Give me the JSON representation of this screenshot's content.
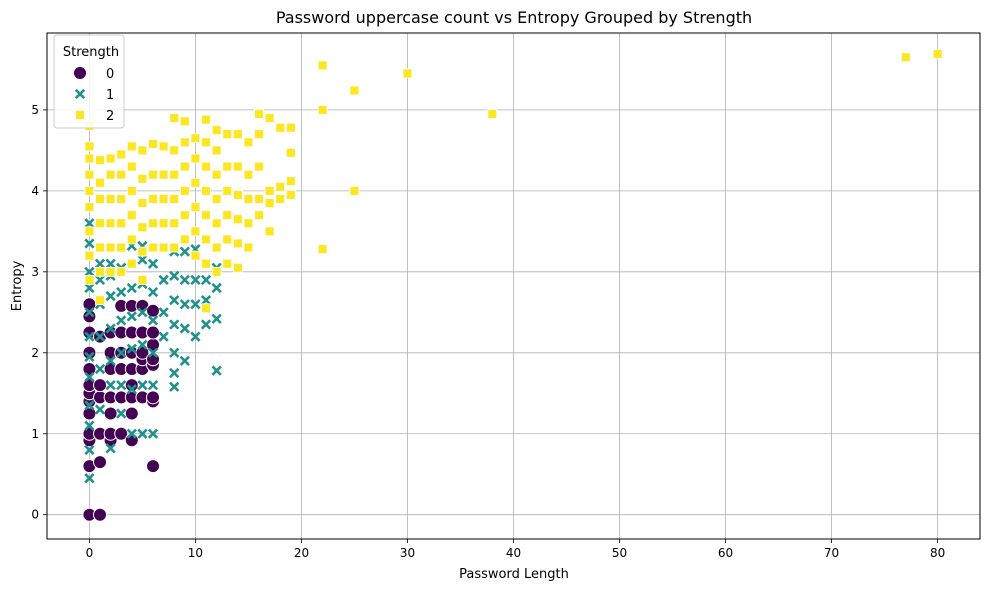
{
  "chart_data": {
    "type": "scatter",
    "title": "Password uppercase count vs Entropy Grouped by Strength",
    "xlabel": "Password Length",
    "ylabel": "Entropy",
    "xlim": [
      -4,
      84
    ],
    "ylim": [
      -0.3,
      5.95
    ],
    "xticks": [
      0,
      10,
      20,
      30,
      40,
      50,
      60,
      70,
      80
    ],
    "yticks": [
      0,
      1,
      2,
      3,
      4,
      5
    ],
    "grid": true,
    "legend": {
      "title": "Strength",
      "placement": "upper-left"
    },
    "series": [
      {
        "name": "0",
        "color": "#440154",
        "marker": "circle",
        "points": [
          [
            0,
            0
          ],
          [
            1,
            0
          ],
          [
            0,
            0.6
          ],
          [
            1,
            0.65
          ],
          [
            0,
            0.92
          ],
          [
            0,
            1.0
          ],
          [
            1,
            1.0
          ],
          [
            0,
            1.25
          ],
          [
            0,
            1.4
          ],
          [
            0,
            1.5
          ],
          [
            1,
            1.45
          ],
          [
            0,
            1.6
          ],
          [
            1,
            1.6
          ],
          [
            0,
            1.8
          ],
          [
            0,
            2.0
          ],
          [
            0,
            2.25
          ],
          [
            0,
            2.45
          ],
          [
            0,
            2.6
          ],
          [
            1,
            2.2
          ],
          [
            2,
            0.92
          ],
          [
            2,
            1.0
          ],
          [
            2,
            1.25
          ],
          [
            2,
            1.45
          ],
          [
            2,
            1.8
          ],
          [
            2,
            2.0
          ],
          [
            2,
            2.25
          ],
          [
            3,
            1.0
          ],
          [
            3,
            1.45
          ],
          [
            3,
            1.8
          ],
          [
            3,
            2.0
          ],
          [
            3,
            2.25
          ],
          [
            3,
            2.58
          ],
          [
            4,
            0.92
          ],
          [
            4,
            1.25
          ],
          [
            4,
            1.45
          ],
          [
            4,
            1.6
          ],
          [
            4,
            1.8
          ],
          [
            4,
            2.0
          ],
          [
            4,
            2.25
          ],
          [
            4,
            2.58
          ],
          [
            5,
            1.45
          ],
          [
            5,
            1.8
          ],
          [
            5,
            1.92
          ],
          [
            5,
            2.0
          ],
          [
            5,
            2.25
          ],
          [
            5,
            2.58
          ],
          [
            6,
            0.6
          ],
          [
            6,
            1.4
          ],
          [
            6,
            1.45
          ],
          [
            6,
            1.85
          ],
          [
            6,
            1.92
          ],
          [
            6,
            2.1
          ],
          [
            6,
            2.25
          ],
          [
            6,
            2.52
          ]
        ]
      },
      {
        "name": "1",
        "color": "#21918c",
        "marker": "x",
        "points": [
          [
            0,
            0.45
          ],
          [
            0,
            0.8
          ],
          [
            0,
            1.1
          ],
          [
            0,
            1.35
          ],
          [
            0,
            1.7
          ],
          [
            0,
            1.95
          ],
          [
            0,
            2.2
          ],
          [
            0,
            2.5
          ],
          [
            0,
            2.8
          ],
          [
            0,
            3.0
          ],
          [
            0,
            3.2
          ],
          [
            0,
            3.35
          ],
          [
            0,
            3.6
          ],
          [
            1,
            1.3
          ],
          [
            1,
            1.8
          ],
          [
            1,
            2.2
          ],
          [
            1,
            2.6
          ],
          [
            1,
            2.9
          ],
          [
            1,
            3.1
          ],
          [
            2,
            0.82
          ],
          [
            2,
            1.6
          ],
          [
            2,
            1.9
          ],
          [
            2,
            2.3
          ],
          [
            2,
            2.7
          ],
          [
            2,
            2.95
          ],
          [
            2,
            3.1
          ],
          [
            3,
            1.25
          ],
          [
            3,
            1.6
          ],
          [
            3,
            2.0
          ],
          [
            3,
            2.4
          ],
          [
            3,
            2.75
          ],
          [
            3,
            3.05
          ],
          [
            4,
            1.0
          ],
          [
            4,
            1.55
          ],
          [
            4,
            2.05
          ],
          [
            4,
            2.45
          ],
          [
            4,
            2.8
          ],
          [
            4,
            3.1
          ],
          [
            4,
            3.32
          ],
          [
            5,
            1.0
          ],
          [
            5,
            1.6
          ],
          [
            5,
            2.1
          ],
          [
            5,
            2.5
          ],
          [
            5,
            2.85
          ],
          [
            5,
            3.15
          ],
          [
            5,
            3.32
          ],
          [
            6,
            1.0
          ],
          [
            6,
            1.6
          ],
          [
            6,
            2.0
          ],
          [
            6,
            2.4
          ],
          [
            6,
            2.75
          ],
          [
            6,
            3.1
          ],
          [
            7,
            2.2
          ],
          [
            7,
            2.5
          ],
          [
            7,
            2.9
          ],
          [
            7,
            3.3
          ],
          [
            8,
            1.58
          ],
          [
            8,
            1.75
          ],
          [
            8,
            2.0
          ],
          [
            8,
            2.35
          ],
          [
            8,
            2.65
          ],
          [
            8,
            2.95
          ],
          [
            8,
            3.25
          ],
          [
            9,
            1.9
          ],
          [
            9,
            2.3
          ],
          [
            9,
            2.6
          ],
          [
            9,
            2.9
          ],
          [
            9,
            3.25
          ],
          [
            10,
            2.2
          ],
          [
            10,
            2.6
          ],
          [
            10,
            2.9
          ],
          [
            10,
            3.28
          ],
          [
            11,
            2.35
          ],
          [
            11,
            2.65
          ],
          [
            11,
            2.9
          ],
          [
            11,
            3.1
          ],
          [
            12,
            1.78
          ],
          [
            12,
            2.42
          ],
          [
            12,
            2.8
          ],
          [
            12,
            3.05
          ]
        ]
      },
      {
        "name": "2",
        "color": "#fde725",
        "marker": "square",
        "points": [
          [
            0,
            2.9
          ],
          [
            0,
            3.2
          ],
          [
            0,
            3.5
          ],
          [
            0,
            3.8
          ],
          [
            0,
            4.0
          ],
          [
            0,
            4.2
          ],
          [
            0,
            4.4
          ],
          [
            0,
            4.55
          ],
          [
            0,
            4.8
          ],
          [
            1,
            2.65
          ],
          [
            1,
            3.0
          ],
          [
            1,
            3.3
          ],
          [
            1,
            3.6
          ],
          [
            1,
            3.9
          ],
          [
            1,
            4.1
          ],
          [
            1,
            4.38
          ],
          [
            2,
            3.0
          ],
          [
            2,
            3.3
          ],
          [
            2,
            3.6
          ],
          [
            2,
            3.9
          ],
          [
            2,
            4.2
          ],
          [
            2,
            4.4
          ],
          [
            3,
            3.0
          ],
          [
            3,
            3.3
          ],
          [
            3,
            3.6
          ],
          [
            3,
            3.9
          ],
          [
            3,
            4.2
          ],
          [
            3,
            4.45
          ],
          [
            4,
            3.1
          ],
          [
            4,
            3.4
          ],
          [
            4,
            3.7
          ],
          [
            4,
            4.0
          ],
          [
            4,
            4.3
          ],
          [
            4,
            4.55
          ],
          [
            5,
            2.9
          ],
          [
            5,
            3.25
          ],
          [
            5,
            3.55
          ],
          [
            5,
            3.85
          ],
          [
            5,
            4.15
          ],
          [
            5,
            4.5
          ],
          [
            6,
            3.3
          ],
          [
            6,
            3.6
          ],
          [
            6,
            3.9
          ],
          [
            6,
            4.2
          ],
          [
            6,
            4.58
          ],
          [
            7,
            3.3
          ],
          [
            7,
            3.6
          ],
          [
            7,
            3.9
          ],
          [
            7,
            4.2
          ],
          [
            7,
            4.55
          ],
          [
            8,
            3.3
          ],
          [
            8,
            3.6
          ],
          [
            8,
            3.9
          ],
          [
            8,
            4.2
          ],
          [
            8,
            4.5
          ],
          [
            8,
            4.9
          ],
          [
            9,
            3.4
          ],
          [
            9,
            3.7
          ],
          [
            9,
            4.0
          ],
          [
            9,
            4.3
          ],
          [
            9,
            4.6
          ],
          [
            9,
            4.86
          ],
          [
            10,
            3.2
          ],
          [
            10,
            3.5
          ],
          [
            10,
            3.8
          ],
          [
            10,
            4.1
          ],
          [
            10,
            4.4
          ],
          [
            10,
            4.65
          ],
          [
            11,
            2.55
          ],
          [
            11,
            3.1
          ],
          [
            11,
            3.4
          ],
          [
            11,
            3.7
          ],
          [
            11,
            4.0
          ],
          [
            11,
            4.3
          ],
          [
            11,
            4.6
          ],
          [
            11,
            4.88
          ],
          [
            12,
            3.0
          ],
          [
            12,
            3.3
          ],
          [
            12,
            3.6
          ],
          [
            12,
            3.9
          ],
          [
            12,
            4.2
          ],
          [
            12,
            4.5
          ],
          [
            12,
            4.75
          ],
          [
            13,
            3.1
          ],
          [
            13,
            3.4
          ],
          [
            13,
            3.7
          ],
          [
            13,
            4.0
          ],
          [
            13,
            4.3
          ],
          [
            13,
            4.7
          ],
          [
            14,
            3.05
          ],
          [
            14,
            3.35
          ],
          [
            14,
            3.65
          ],
          [
            14,
            3.95
          ],
          [
            14,
            4.3
          ],
          [
            14,
            4.7
          ],
          [
            15,
            3.3
          ],
          [
            15,
            3.6
          ],
          [
            15,
            3.9
          ],
          [
            15,
            4.2
          ],
          [
            15,
            4.6
          ],
          [
            16,
            3.7
          ],
          [
            16,
            3.9
          ],
          [
            16,
            4.3
          ],
          [
            16,
            4.7
          ],
          [
            16,
            4.95
          ],
          [
            17,
            3.5
          ],
          [
            17,
            3.85
          ],
          [
            17,
            4.0
          ],
          [
            17,
            4.9
          ],
          [
            18,
            3.9
          ],
          [
            18,
            4.05
          ],
          [
            18,
            4.78
          ],
          [
            19,
            3.95
          ],
          [
            19,
            4.12
          ],
          [
            19,
            4.47
          ],
          [
            19,
            4.78
          ],
          [
            22,
            3.28
          ],
          [
            22,
            5.0
          ],
          [
            22,
            5.55
          ],
          [
            25,
            4.0
          ],
          [
            25,
            5.24
          ],
          [
            30,
            5.45
          ],
          [
            38,
            4.95
          ],
          [
            77,
            5.65
          ],
          [
            80,
            5.69
          ]
        ]
      }
    ]
  }
}
